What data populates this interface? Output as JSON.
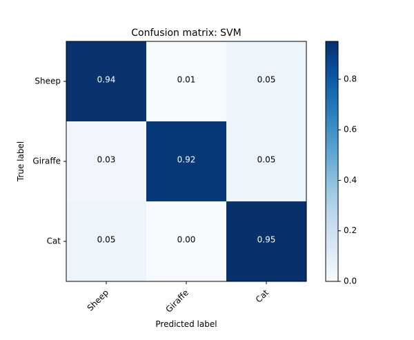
{
  "chart_data": {
    "type": "heatmap",
    "title": "Confusion matrix: SVM",
    "xlabel": "Predicted label",
    "ylabel": "True label",
    "x_categories": [
      "Sheep",
      "Giraffe",
      "Cat"
    ],
    "y_categories": [
      "Sheep",
      "Giraffe",
      "Cat"
    ],
    "values": [
      [
        0.94,
        0.01,
        0.05
      ],
      [
        0.03,
        0.92,
        0.05
      ],
      [
        0.05,
        0.0,
        0.95
      ]
    ],
    "cell_labels": [
      [
        "0.94",
        "0.01",
        "0.05"
      ],
      [
        "0.03",
        "0.92",
        "0.05"
      ],
      [
        "0.05",
        "0.00",
        "0.95"
      ]
    ],
    "colormap": "Blues",
    "color_low": "#f7fbff",
    "color_high": "#08306b",
    "colorbar": {
      "range": [
        0.0,
        0.95
      ],
      "ticks": [
        0.0,
        0.2,
        0.4,
        0.6,
        0.8
      ],
      "tick_labels": [
        "0.0",
        "0.2",
        "0.4",
        "0.6",
        "0.8"
      ]
    }
  }
}
